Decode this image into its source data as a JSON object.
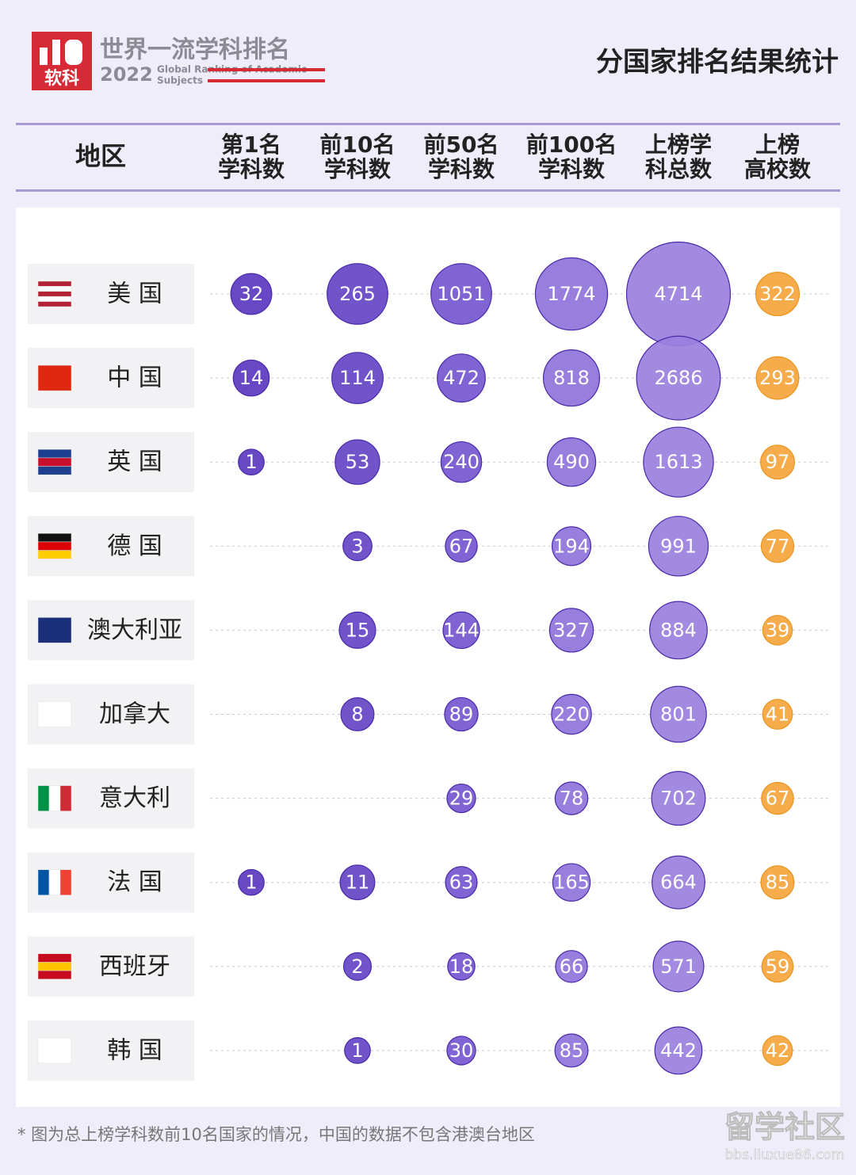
{
  "header": {
    "logo_text": "软科",
    "title_cn": "世界一流学科排名",
    "year": "2022",
    "title_en": "Global Ranking of Academic",
    "title_en2": "Subjects",
    "page_title": "分国家排名结果统计"
  },
  "chart_data": {
    "type": "bubble-table",
    "row_header": "地区",
    "columns": [
      [
        "第1名",
        "学科数"
      ],
      [
        "前10名",
        "学科数"
      ],
      [
        "前50名",
        "学科数"
      ],
      [
        "前100名",
        "学科数"
      ],
      [
        "上榜学",
        "科总数"
      ],
      [
        "上榜",
        "高校数"
      ]
    ],
    "column_colors": [
      "#5b38c0",
      "#6545c6",
      "#7657cf",
      "#8f73da",
      "#9a80de",
      "#f6a53c"
    ],
    "rows": [
      {
        "name": "美 国",
        "values": [
          32,
          265,
          1051,
          1774,
          4714,
          322
        ]
      },
      {
        "name": "中 国",
        "values": [
          14,
          114,
          472,
          818,
          2686,
          293
        ]
      },
      {
        "name": "英 国",
        "values": [
          1,
          53,
          240,
          490,
          1613,
          97
        ]
      },
      {
        "name": "德 国",
        "values": [
          null,
          3,
          67,
          194,
          991,
          77
        ]
      },
      {
        "name": "澳大利亚",
        "values": [
          null,
          15,
          144,
          327,
          884,
          39
        ]
      },
      {
        "name": "加拿大",
        "values": [
          null,
          8,
          89,
          220,
          801,
          41
        ]
      },
      {
        "name": "意大利",
        "values": [
          null,
          null,
          29,
          78,
          702,
          67
        ]
      },
      {
        "name": "法 国",
        "values": [
          1,
          11,
          63,
          165,
          664,
          85
        ]
      },
      {
        "name": "西班牙",
        "values": [
          null,
          2,
          18,
          66,
          571,
          59
        ]
      },
      {
        "name": "韩 国",
        "values": [
          null,
          1,
          30,
          85,
          442,
          42
        ]
      }
    ]
  },
  "footnote": "* 图为总上榜学科数前10名国家的情况，中国的数据不包含港澳台地区",
  "watermark": {
    "title": "留学社区",
    "url": "bbs.liuxue86.com"
  }
}
